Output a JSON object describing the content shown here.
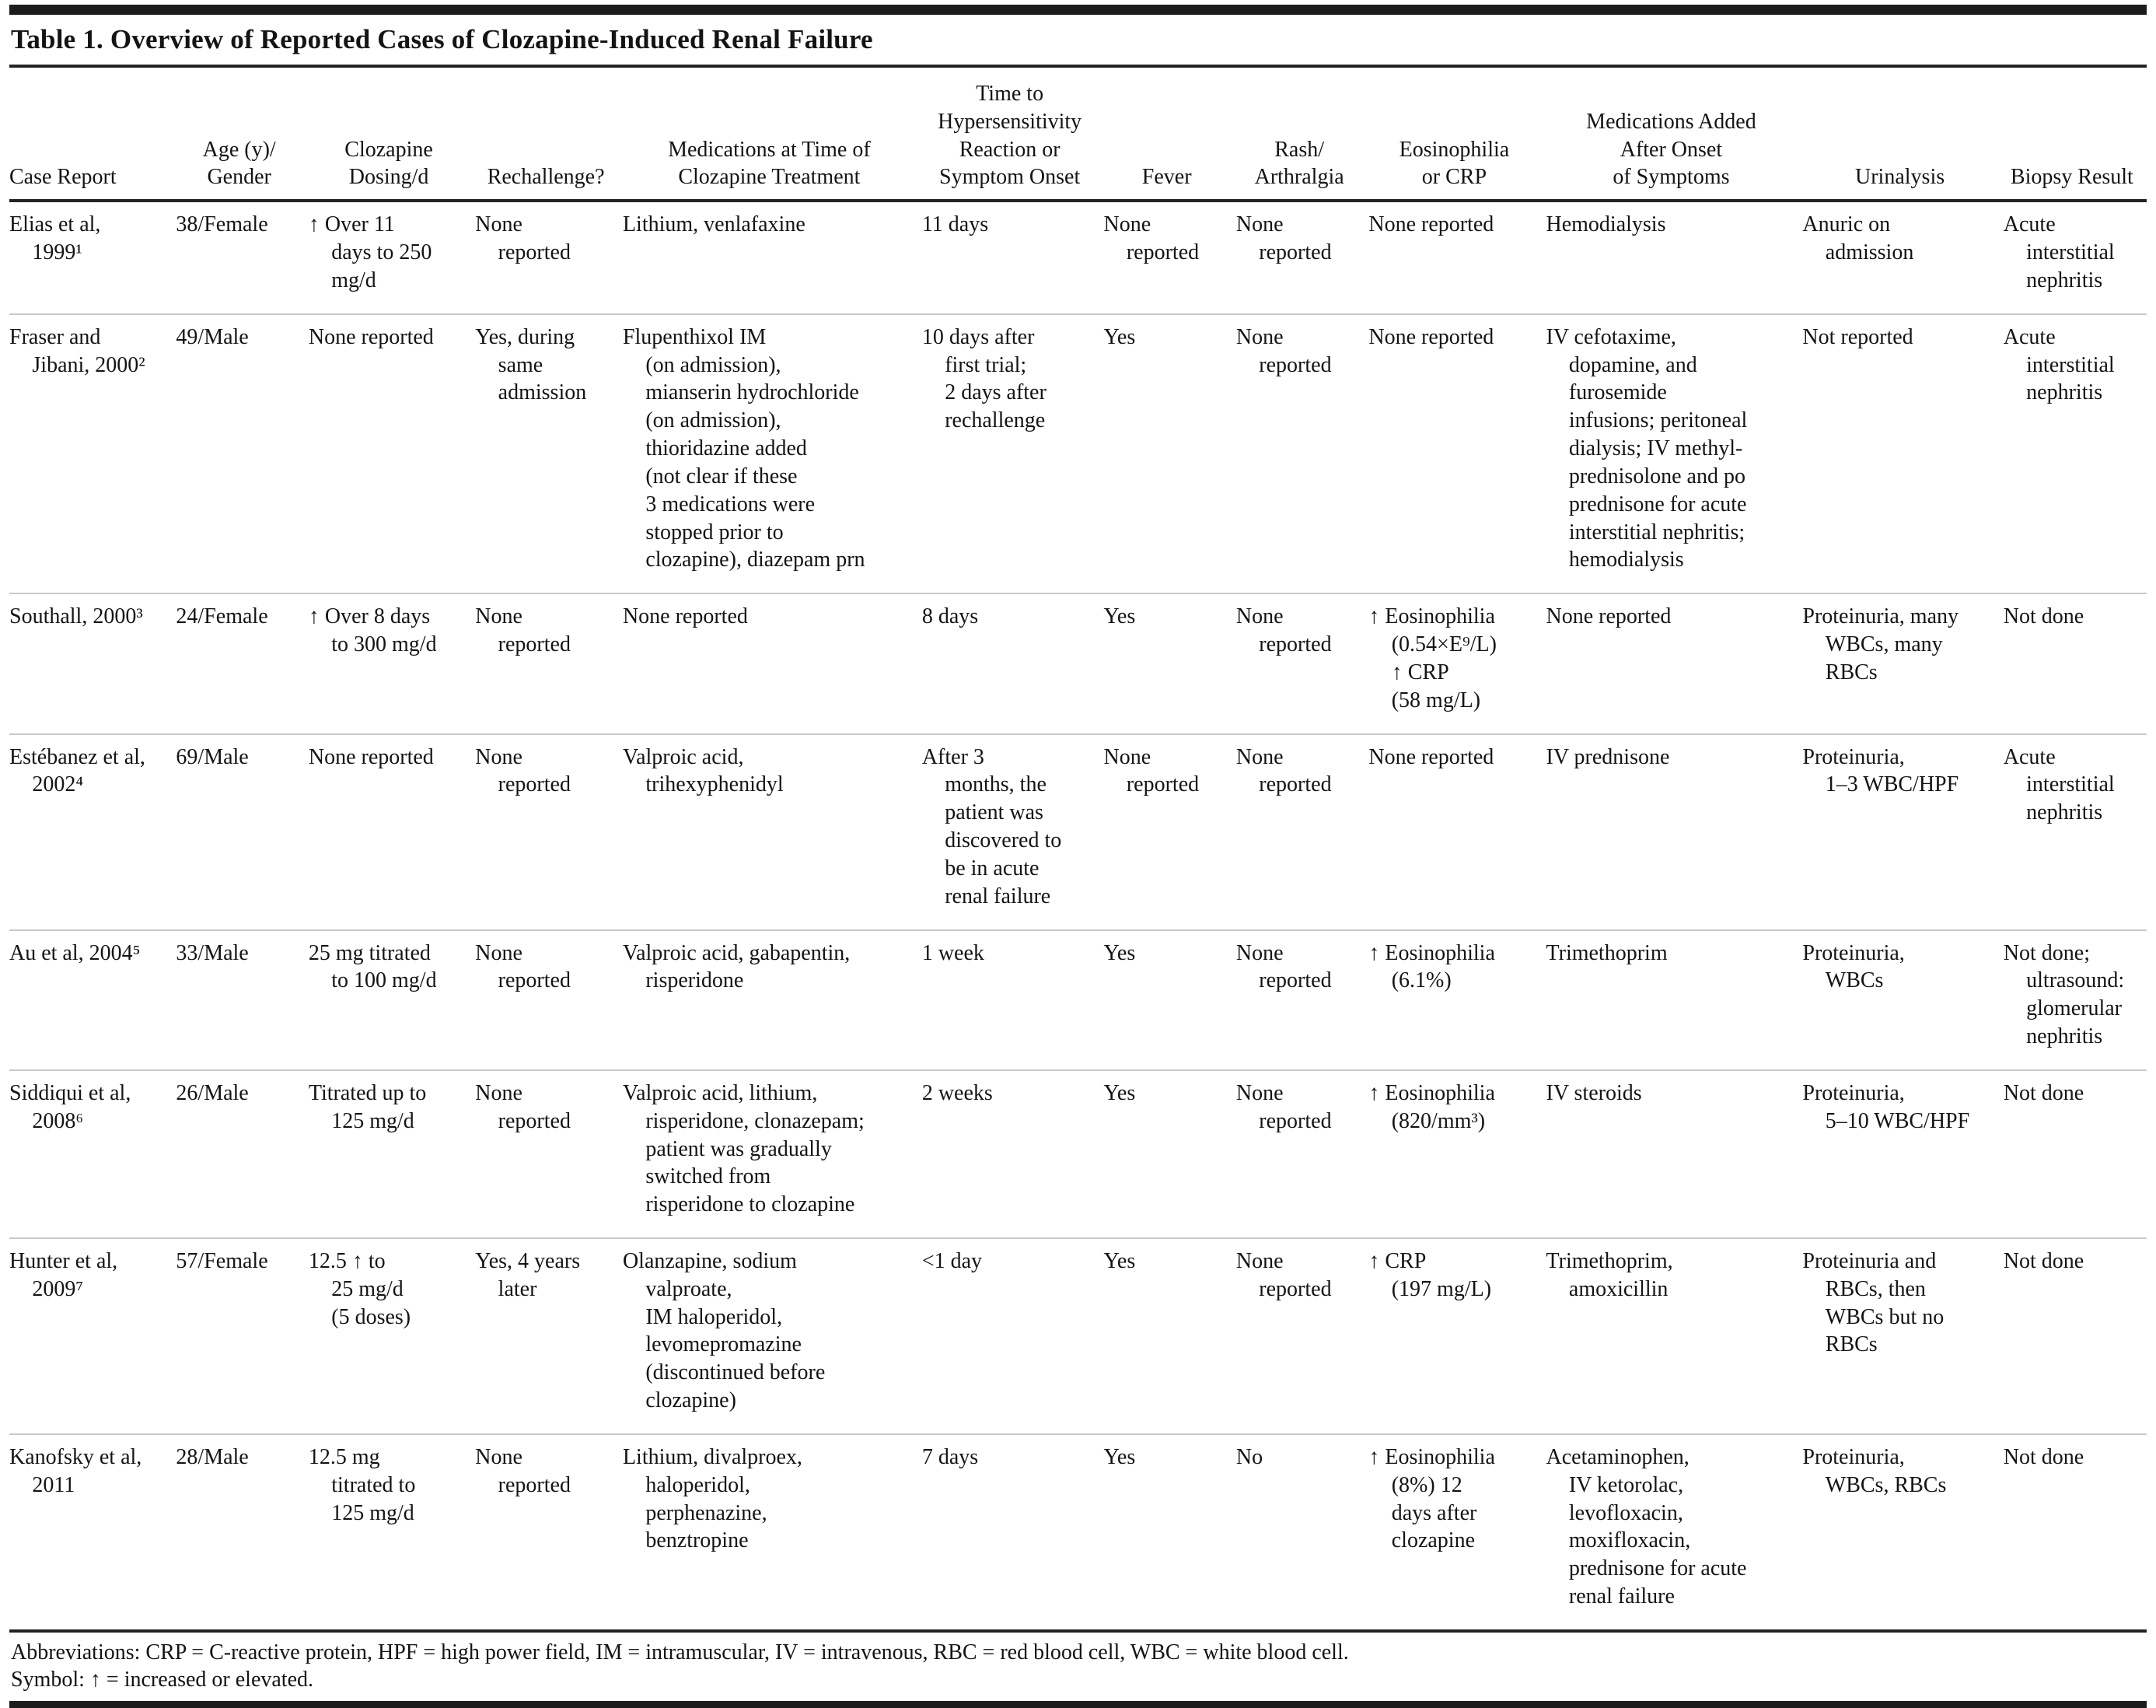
{
  "title": "Table 1. Overview of Reported Cases of Clozapine-Induced Renal Failure",
  "table": {
    "columns": [
      {
        "id": "case_report",
        "label": "Case Report"
      },
      {
        "id": "age_gender",
        "label": "Age (y)/\nGender"
      },
      {
        "id": "dosing",
        "label": "Clozapine\nDosing/d"
      },
      {
        "id": "rechallenge",
        "label": "Rechallenge?"
      },
      {
        "id": "meds_at_time",
        "label": "Medications at Time of\nClozapine Treatment"
      },
      {
        "id": "time_to_onset",
        "label": "Time to\nHypersensitivity\nReaction or\nSymptom Onset"
      },
      {
        "id": "fever",
        "label": "Fever"
      },
      {
        "id": "rash_arthralgia",
        "label": "Rash/\nArthralgia"
      },
      {
        "id": "eosinophilia_crp",
        "label": "Eosinophilia\nor CRP"
      },
      {
        "id": "meds_added",
        "label": "Medications Added\nAfter Onset\nof Symptoms"
      },
      {
        "id": "urinalysis",
        "label": "Urinalysis"
      },
      {
        "id": "biopsy",
        "label": "Biopsy Result"
      }
    ],
    "rows": [
      {
        "case_report": "Elias et al,\n1999¹",
        "age_gender": "38/Female",
        "dosing": "↑ Over 11\ndays to 250\nmg/d",
        "rechallenge": "None\nreported",
        "meds_at_time": "Lithium, venlafaxine",
        "time_to_onset": "11 days",
        "fever": "None\nreported",
        "rash_arthralgia": "None\nreported",
        "eosinophilia_crp": "None reported",
        "meds_added": "Hemodialysis",
        "urinalysis": "Anuric on\nadmission",
        "biopsy": "Acute\ninterstitial\nnephritis"
      },
      {
        "case_report": "Fraser and\nJibani, 2000²",
        "age_gender": "49/Male",
        "dosing": "None reported",
        "rechallenge": "Yes, during\nsame\nadmission",
        "meds_at_time": "Flupenthixol IM\n(on admission),\nmianserin hydrochloride\n(on admission),\nthioridazine added\n(not clear if these\n3 medications were\nstopped prior to\nclozapine), diazepam prn",
        "time_to_onset": "10 days after\nfirst trial;\n2 days after\nrechallenge",
        "fever": "Yes",
        "rash_arthralgia": "None\nreported",
        "eosinophilia_crp": "None reported",
        "meds_added": "IV cefotaxime,\ndopamine, and\nfurosemide\ninfusions; peritoneal\ndialysis; IV methyl-\nprednisolone and po\nprednisone for acute\ninterstitial nephritis;\nhemodialysis",
        "urinalysis": "Not reported",
        "biopsy": "Acute\ninterstitial\nnephritis"
      },
      {
        "case_report": "Southall, 2000³",
        "age_gender": "24/Female",
        "dosing": "↑ Over 8 days\nto 300 mg/d",
        "rechallenge": "None\nreported",
        "meds_at_time": "None reported",
        "time_to_onset": "8 days",
        "fever": "Yes",
        "rash_arthralgia": "None\nreported",
        "eosinophilia_crp": "↑ Eosinophilia\n(0.54×E⁹/L)\n↑ CRP\n(58 mg/L)",
        "meds_added": "None reported",
        "urinalysis": "Proteinuria, many\nWBCs, many\nRBCs",
        "biopsy": "Not done"
      },
      {
        "case_report": "Estébanez et al,\n2002⁴",
        "age_gender": "69/Male",
        "dosing": "None reported",
        "rechallenge": "None\nreported",
        "meds_at_time": "Valproic acid,\ntrihexyphenidyl",
        "time_to_onset": "After 3\nmonths, the\npatient was\ndiscovered to\nbe in acute\nrenal failure",
        "fever": "None\nreported",
        "rash_arthralgia": "None\nreported",
        "eosinophilia_crp": "None reported",
        "meds_added": "IV prednisone",
        "urinalysis": "Proteinuria,\n1–3 WBC/HPF",
        "biopsy": "Acute\ninterstitial\nnephritis"
      },
      {
        "case_report": "Au et al, 2004⁵",
        "age_gender": "33/Male",
        "dosing": "25 mg titrated\nto 100 mg/d",
        "rechallenge": "None\nreported",
        "meds_at_time": "Valproic acid, gabapentin,\nrisperidone",
        "time_to_onset": "1 week",
        "fever": "Yes",
        "rash_arthralgia": "None\nreported",
        "eosinophilia_crp": "↑ Eosinophilia\n(6.1%)",
        "meds_added": "Trimethoprim",
        "urinalysis": "Proteinuria,\nWBCs",
        "biopsy": "Not done;\nultrasound:\nglomerular\nnephritis"
      },
      {
        "case_report": "Siddiqui et al,\n2008⁶",
        "age_gender": "26/Male",
        "dosing": "Titrated up to\n125 mg/d",
        "rechallenge": "None\nreported",
        "meds_at_time": "Valproic acid, lithium,\nrisperidone, clonazepam;\npatient was gradually\nswitched from\nrisperidone to clozapine",
        "time_to_onset": "2 weeks",
        "fever": "Yes",
        "rash_arthralgia": "None\nreported",
        "eosinophilia_crp": "↑ Eosinophilia\n(820/mm³)",
        "meds_added": "IV steroids",
        "urinalysis": "Proteinuria,\n5–10 WBC/HPF",
        "biopsy": "Not done"
      },
      {
        "case_report": "Hunter et al,\n2009⁷",
        "age_gender": "57/Female",
        "dosing": "12.5 ↑ to\n25 mg/d\n(5 doses)",
        "rechallenge": "Yes, 4 years\nlater",
        "meds_at_time": "Olanzapine, sodium\nvalproate,\nIM haloperidol,\nlevomepromazine\n(discontinued before\nclozapine)",
        "time_to_onset": "<1 day",
        "fever": "Yes",
        "rash_arthralgia": "None\nreported",
        "eosinophilia_crp": "↑ CRP\n(197 mg/L)",
        "meds_added": "Trimethoprim,\namoxicillin",
        "urinalysis": "Proteinuria and\nRBCs, then\nWBCs but no\nRBCs",
        "biopsy": "Not done"
      },
      {
        "case_report": "Kanofsky et al,\n2011",
        "age_gender": "28/Male",
        "dosing": "12.5 mg\ntitrated to\n125 mg/d",
        "rechallenge": "None\nreported",
        "meds_at_time": "Lithium, divalproex,\nhaloperidol,\nperphenazine,\nbenztropine",
        "time_to_onset": "7 days",
        "fever": "Yes",
        "rash_arthralgia": "No",
        "eosinophilia_crp": "↑ Eosinophilia\n(8%) 12\ndays after\nclozapine",
        "meds_added": "Acetaminophen,\nIV ketorolac,\nlevofloxacin,\nmoxifloxacin,\nprednisone for acute\nrenal failure",
        "urinalysis": "Proteinuria,\nWBCs, RBCs",
        "biopsy": "Not done"
      }
    ]
  },
  "footnotes": {
    "abbreviations": "Abbreviations: CRP = C-reactive protein, HPF = high power field, IM = intramuscular, IV = intravenous, RBC = red blood cell, WBC = white blood cell.",
    "symbol": "Symbol: ↑ = increased or elevated."
  }
}
